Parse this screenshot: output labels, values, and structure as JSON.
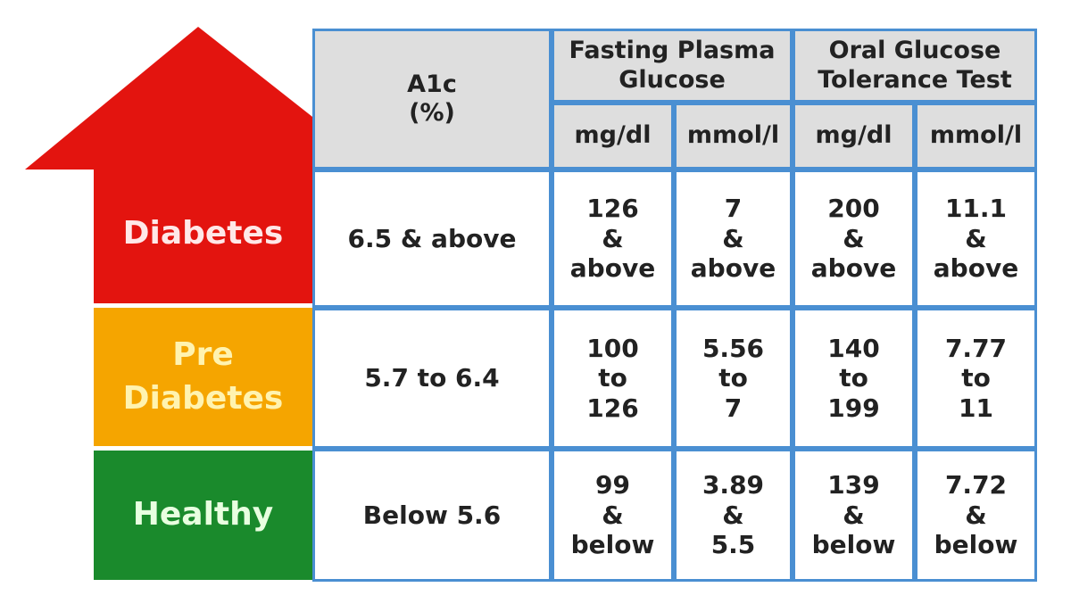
{
  "header": {
    "a1c": [
      "A1c",
      "(%)"
    ],
    "fpg": [
      "Fasting Plasma",
      "Glucose"
    ],
    "ogtt": [
      "Oral Glucose",
      "Tolerance Test"
    ],
    "units": [
      "mg/dl",
      "mmol/l",
      "mg/dl",
      "mmol/l"
    ]
  },
  "rows": [
    {
      "level": [
        "Diabetes"
      ],
      "a1c": "6.5 & above",
      "cells": [
        [
          "126",
          "&",
          "above"
        ],
        [
          "7",
          "&",
          "above"
        ],
        [
          "200",
          "&",
          "above"
        ],
        [
          "11.1",
          "&",
          "above"
        ]
      ]
    },
    {
      "level": [
        "Pre",
        "Diabetes"
      ],
      "a1c": "5.7 to 6.4",
      "cells": [
        [
          "100",
          "to",
          "126"
        ],
        [
          "5.56",
          "to",
          "7"
        ],
        [
          "140",
          "to",
          "199"
        ],
        [
          "7.77",
          "to",
          "11"
        ]
      ]
    },
    {
      "level": [
        "Healthy"
      ],
      "a1c": "Below 5.6",
      "cells": [
        [
          "99",
          "&",
          "below"
        ],
        [
          "3.89",
          "&",
          "5.5"
        ],
        [
          "139",
          "&",
          "below"
        ],
        [
          "7.72",
          "&",
          "below"
        ]
      ]
    }
  ]
}
